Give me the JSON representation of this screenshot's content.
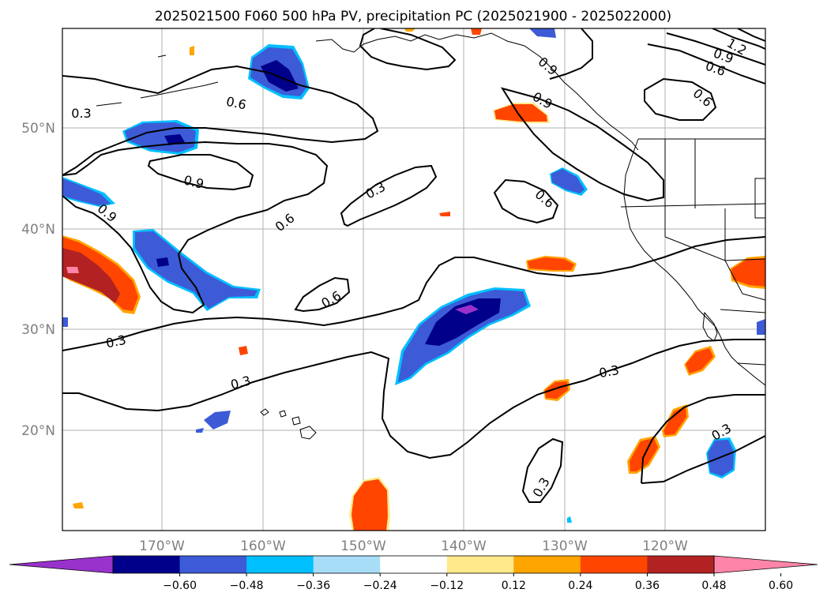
{
  "title": "2025021500 F060 500 hPa PV, precipitation PC (2025021900 - 2025022000)",
  "map": {
    "lat_labels": [
      "20°N",
      "30°N",
      "40°N",
      "50°N"
    ],
    "lon_labels": [
      "170°W",
      "160°W",
      "150°W",
      "140°W",
      "130°W",
      "120°W"
    ],
    "contour_labels": [
      "0.3",
      "0.6",
      "0.9",
      "1.2"
    ],
    "colors": {
      "neg_060": "#9932cc",
      "neg_048": "#00008b",
      "neg_036": "#3d5bd6",
      "neg_024": "#00bfff",
      "neg_012": "#a8ddf8",
      "pos_012": "#ffe98a",
      "pos_024": "#ffa500",
      "pos_036": "#ff4500",
      "pos_048": "#b22222",
      "pos_060": "#ff85a8"
    }
  },
  "colorbar": {
    "colors": [
      "#9932cc",
      "#00008b",
      "#3d5bd6",
      "#00bfff",
      "#a8ddf8",
      "#ffffff",
      "#ffe98a",
      "#ffa500",
      "#ff4500",
      "#b22222",
      "#ff85a8"
    ],
    "ticks": [
      "−0.60",
      "−0.48",
      "−0.36",
      "−0.24",
      "−0.12",
      "0.12",
      "0.24",
      "0.36",
      "0.48",
      "0.60"
    ]
  }
}
